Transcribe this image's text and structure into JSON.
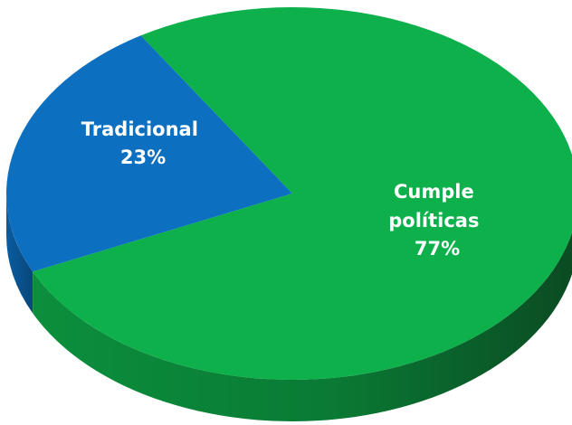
{
  "chart_data": {
    "type": "pie",
    "title": "",
    "style": "3d",
    "slices": [
      {
        "label_lines": [
          "Tradicional"
        ],
        "percent_label": "23%",
        "value": 23,
        "color": "#0D6FBF",
        "side_color": "#094E86"
      },
      {
        "label_lines": [
          "Cumple",
          "políticas"
        ],
        "percent_label": "77%",
        "value": 77,
        "color": "#0DB04B",
        "side_color": "#0A7A34"
      }
    ],
    "legend": "none"
  }
}
